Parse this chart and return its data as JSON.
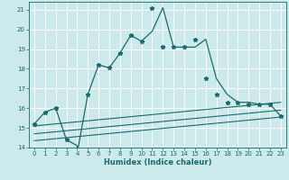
{
  "title": "",
  "xlabel": "Humidex (Indice chaleur)",
  "bg_color": "#cce9eb",
  "grid_color": "#ffffff",
  "line_color": "#1a6b6b",
  "xlim": [
    -0.5,
    23.5
  ],
  "ylim": [
    14,
    21.4
  ],
  "xticks": [
    0,
    1,
    2,
    3,
    4,
    5,
    6,
    7,
    8,
    9,
    10,
    11,
    12,
    13,
    14,
    15,
    16,
    17,
    18,
    19,
    20,
    21,
    22,
    23
  ],
  "yticks": [
    14,
    15,
    16,
    17,
    18,
    19,
    20,
    21
  ],
  "series_main_x": [
    0,
    1,
    2,
    3,
    4,
    4,
    5,
    6,
    7,
    8,
    9,
    10,
    11,
    12,
    13,
    14,
    15,
    16,
    17,
    18,
    19,
    20,
    21,
    22,
    23
  ],
  "series_main_y": [
    15.2,
    15.8,
    16.0,
    14.4,
    14.1,
    13.7,
    16.7,
    18.2,
    18.05,
    18.8,
    19.7,
    19.4,
    19.9,
    21.1,
    19.1,
    19.1,
    19.1,
    19.5,
    17.5,
    16.7,
    16.3,
    16.3,
    16.2,
    16.2,
    15.6
  ],
  "marker_x": [
    0,
    1,
    2,
    3,
    4,
    5,
    6,
    7,
    8,
    9,
    10,
    11,
    12,
    13,
    14,
    15,
    16,
    17,
    18,
    19,
    20,
    21,
    22,
    23
  ],
  "marker_y": [
    15.2,
    15.8,
    16.0,
    14.4,
    13.7,
    16.7,
    18.2,
    18.05,
    18.8,
    19.7,
    19.4,
    21.1,
    19.1,
    19.1,
    19.1,
    19.5,
    17.5,
    16.7,
    16.3,
    16.3,
    16.2,
    16.2,
    16.2,
    15.6
  ],
  "line2_x": [
    0,
    23
  ],
  "line2_y": [
    15.1,
    16.3
  ],
  "line3_x": [
    0,
    23
  ],
  "line3_y": [
    14.7,
    15.9
  ],
  "line4_x": [
    0,
    23
  ],
  "line4_y": [
    14.35,
    15.55
  ]
}
